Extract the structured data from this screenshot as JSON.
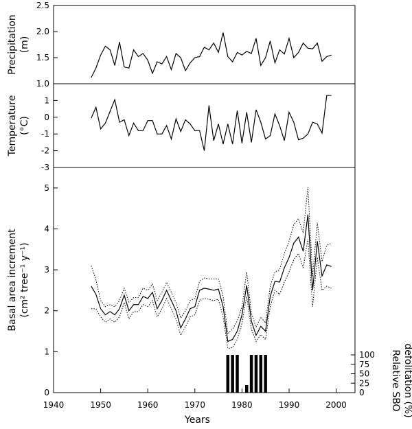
{
  "chart_data": [
    {
      "type": "line",
      "ylabel_lines": [
        "Precipitation",
        "(m)"
      ],
      "xlim": [
        1940,
        2004
      ],
      "ylim": [
        1.0,
        2.5
      ],
      "yticks": [
        "1.0",
        "1.5",
        "2.0",
        "2.5"
      ],
      "series": [
        {
          "x": [
            1948,
            1949,
            1950,
            1951,
            1952,
            1953,
            1954,
            1955,
            1956,
            1957,
            1958,
            1959,
            1960,
            1961,
            1962,
            1963,
            1964,
            1965,
            1966,
            1967,
            1968,
            1969,
            1970,
            1971,
            1972,
            1973,
            1974,
            1975,
            1976,
            1977,
            1978,
            1979,
            1980,
            1981,
            1982,
            1983,
            1984,
            1985,
            1986,
            1987,
            1988,
            1989,
            1990,
            1991,
            1992,
            1993,
            1994,
            1995,
            1996,
            1997,
            1998,
            1999
          ],
          "values": [
            1.12,
            1.3,
            1.55,
            1.72,
            1.65,
            1.35,
            1.8,
            1.32,
            1.3,
            1.65,
            1.52,
            1.58,
            1.45,
            1.2,
            1.42,
            1.38,
            1.52,
            1.27,
            1.58,
            1.5,
            1.25,
            1.4,
            1.5,
            1.52,
            1.7,
            1.65,
            1.78,
            1.6,
            1.98,
            1.52,
            1.42,
            1.6,
            1.55,
            1.62,
            1.58,
            1.87,
            1.35,
            1.5,
            1.82,
            1.4,
            1.65,
            1.57,
            1.87,
            1.5,
            1.6,
            1.78,
            1.68,
            1.67,
            1.78,
            1.43,
            1.52,
            1.55
          ]
        }
      ]
    },
    {
      "type": "line",
      "ylabel_lines": [
        "Temperature",
        "(°C)"
      ],
      "xlim": [
        1940,
        2004
      ],
      "ylim": [
        -3,
        2
      ],
      "yticks": [
        "-3",
        "-2",
        "-1",
        "0",
        "1"
      ],
      "series": [
        {
          "x": [
            1948,
            1949,
            1950,
            1951,
            1952,
            1953,
            1954,
            1955,
            1956,
            1957,
            1958,
            1959,
            1960,
            1961,
            1962,
            1963,
            1964,
            1965,
            1966,
            1967,
            1968,
            1969,
            1970,
            1971,
            1972,
            1973,
            1974,
            1975,
            1976,
            1977,
            1978,
            1979,
            1980,
            1981,
            1982,
            1983,
            1984,
            1985,
            1986,
            1987,
            1988,
            1989,
            1990,
            1991,
            1992,
            1993,
            1994,
            1995,
            1996,
            1997,
            1998,
            1999
          ],
          "values": [
            -0.05,
            0.6,
            -0.7,
            -0.35,
            0.35,
            1.05,
            -0.3,
            -0.15,
            -1.1,
            -0.35,
            -0.8,
            -0.8,
            -0.2,
            -0.2,
            -1.0,
            -1.0,
            -0.5,
            -1.3,
            -0.1,
            -0.85,
            -0.15,
            -0.4,
            -0.8,
            -0.8,
            -2.0,
            0.7,
            -1.4,
            -0.4,
            -1.6,
            -0.4,
            -1.6,
            0.4,
            -1.55,
            0.3,
            -1.5,
            0.45,
            -0.3,
            -1.3,
            -1.1,
            0.2,
            -0.5,
            -1.4,
            0.3,
            -0.3,
            -1.35,
            -1.25,
            -1.0,
            -0.3,
            -0.4,
            -0.95,
            1.3,
            1.3
          ]
        }
      ]
    },
    {
      "type": "line",
      "ylabel_lines": [
        "Basal area increment",
        "(cm² tree⁻¹ y⁻¹)"
      ],
      "y2label_lines": [
        "Relative SBO",
        "defolitation (%)"
      ],
      "xlabel": "Years",
      "xlim": [
        1940,
        2004
      ],
      "xticks": [
        "1940",
        "1950",
        "1960",
        "1970",
        "1980",
        "1990",
        "2000"
      ],
      "ylim": [
        0,
        5.5
      ],
      "yticks": [
        "0",
        "1",
        "2",
        "3",
        "4",
        "5"
      ],
      "y2ticks": [
        "0",
        "25",
        "50",
        "75",
        "100"
      ],
      "y2lim": [
        0,
        100
      ],
      "series": [
        {
          "style": "solid",
          "x": [
            1948,
            1949,
            1950,
            1951,
            1952,
            1953,
            1954,
            1955,
            1956,
            1957,
            1958,
            1959,
            1960,
            1961,
            1962,
            1963,
            1964,
            1965,
            1966,
            1967,
            1968,
            1969,
            1970,
            1971,
            1972,
            1973,
            1974,
            1975,
            1976,
            1977,
            1978,
            1979,
            1980,
            1981,
            1982,
            1983,
            1984,
            1985,
            1986,
            1987,
            1988,
            1989,
            1990,
            1991,
            1992,
            1993,
            1994,
            1995,
            1996,
            1997,
            1998,
            1999
          ],
          "values": [
            2.6,
            2.4,
            2.05,
            1.9,
            1.98,
            1.9,
            2.05,
            2.38,
            2.0,
            2.15,
            2.15,
            2.35,
            2.3,
            2.45,
            2.05,
            2.25,
            2.5,
            2.25,
            2.0,
            1.58,
            1.8,
            2.05,
            2.1,
            2.5,
            2.55,
            2.53,
            2.5,
            2.53,
            2.1,
            1.25,
            1.3,
            1.5,
            1.9,
            2.62,
            1.75,
            1.4,
            1.62,
            1.5,
            2.35,
            2.72,
            2.7,
            3.05,
            3.3,
            3.65,
            3.8,
            3.45,
            4.35,
            2.5,
            3.7,
            2.85,
            3.12,
            3.08
          ]
        },
        {
          "style": "dotted",
          "x": [
            1948,
            1949,
            1950,
            1951,
            1952,
            1953,
            1954,
            1955,
            1956,
            1957,
            1958,
            1959,
            1960,
            1961,
            1962,
            1963,
            1964,
            1965,
            1966,
            1967,
            1968,
            1969,
            1970,
            1971,
            1972,
            1973,
            1974,
            1975,
            1976,
            1977,
            1978,
            1979,
            1980,
            1981,
            1982,
            1983,
            1984,
            1985,
            1986,
            1987,
            1988,
            1989,
            1990,
            1991,
            1992,
            1993,
            1994,
            1995,
            1996,
            1997,
            1998,
            1999
          ],
          "values": [
            3.1,
            2.75,
            2.25,
            2.1,
            2.15,
            2.1,
            2.25,
            2.55,
            2.2,
            2.32,
            2.32,
            2.55,
            2.5,
            2.65,
            2.25,
            2.45,
            2.7,
            2.45,
            2.2,
            1.82,
            2.0,
            2.25,
            2.3,
            2.72,
            2.8,
            2.78,
            2.78,
            2.78,
            2.35,
            1.45,
            1.55,
            1.75,
            2.1,
            2.95,
            1.95,
            1.6,
            1.85,
            1.7,
            2.6,
            2.95,
            3.0,
            3.4,
            3.7,
            4.1,
            4.25,
            3.9,
            5.02,
            2.85,
            4.15,
            3.2,
            3.6,
            3.65
          ]
        },
        {
          "style": "dotted",
          "x": [
            1948,
            1949,
            1950,
            1951,
            1952,
            1953,
            1954,
            1955,
            1956,
            1957,
            1958,
            1959,
            1960,
            1961,
            1962,
            1963,
            1964,
            1965,
            1966,
            1967,
            1968,
            1969,
            1970,
            1971,
            1972,
            1973,
            1974,
            1975,
            1976,
            1977,
            1978,
            1979,
            1980,
            1981,
            1982,
            1983,
            1984,
            1985,
            1986,
            1987,
            1988,
            1989,
            1990,
            1991,
            1992,
            1993,
            1994,
            1995,
            1996,
            1997,
            1998,
            1999
          ],
          "values": [
            2.05,
            2.05,
            1.85,
            1.72,
            1.8,
            1.72,
            1.85,
            2.2,
            1.8,
            1.98,
            1.98,
            2.15,
            2.1,
            2.25,
            1.85,
            2.05,
            2.3,
            2.05,
            1.8,
            1.4,
            1.6,
            1.85,
            1.9,
            2.25,
            2.3,
            2.28,
            2.25,
            2.28,
            1.85,
            1.08,
            1.1,
            1.3,
            1.7,
            2.35,
            1.55,
            1.25,
            1.42,
            1.3,
            2.1,
            2.5,
            2.4,
            2.7,
            2.95,
            3.25,
            3.4,
            3.05,
            3.75,
            2.1,
            3.3,
            2.5,
            2.6,
            2.55
          ]
        }
      ],
      "bars": {
        "x": [
          1977,
          1978,
          1979,
          1981,
          1982,
          1983,
          1984,
          1985
        ],
        "values": [
          100,
          100,
          100,
          20,
          100,
          100,
          100,
          100
        ]
      }
    }
  ]
}
